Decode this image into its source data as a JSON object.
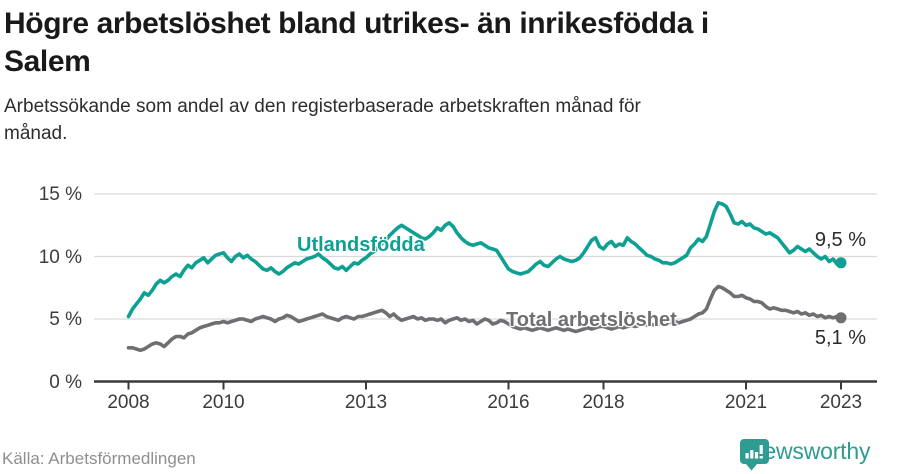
{
  "header": {
    "title": "Högre arbetslöshet bland utrikes- än inrikesfödda i Salem",
    "title_lines": [
      "Högre arbetslöshet bland utrikes- än inrikesfödda i",
      "Salem"
    ],
    "subtitle": "Arbetssökande som andel av den registerbaserade arbetskraften månad för månad.",
    "subtitle_lines": [
      "Arbetssökande som andel av den registerbaserade arbetskraften månad för",
      "månad."
    ]
  },
  "footer": {
    "source": "Källa: Arbetsförmedlingen",
    "logo_text": "Newsworthy",
    "logo_icon": "newsworthy-speech-bubble-bar-chart-icon"
  },
  "colors": {
    "foreign_born_line": "#0da093",
    "total_line": "#6e6e73",
    "gridline": "#d9d9d9",
    "axis": "#3a3a3a",
    "title_text": "#191919",
    "tick_text": "#3c3c3c",
    "source_text": "#8e8e95",
    "logo_teal": "#2e9c92"
  },
  "chart_data": {
    "type": "line",
    "frequency": "monthly",
    "x_start": "2008-01",
    "x_end": "2023-01",
    "ylim": [
      0,
      16
    ],
    "grid": "horizontal",
    "legend_position": "inline-labels",
    "y_ticks": [
      {
        "value": 15,
        "label": "15 %"
      },
      {
        "value": 10,
        "label": "10 %"
      },
      {
        "value": 5,
        "label": "5 %"
      },
      {
        "value": 0,
        "label": "0 %"
      }
    ],
    "x_ticks": [
      {
        "year": 2008,
        "label": "2008"
      },
      {
        "year": 2010,
        "label": "2010"
      },
      {
        "year": 2013,
        "label": "2013"
      },
      {
        "year": 2016,
        "label": "2016"
      },
      {
        "year": 2018,
        "label": "2018"
      },
      {
        "year": 2021,
        "label": "2021"
      },
      {
        "year": 2023,
        "label": "2023"
      }
    ],
    "series": [
      {
        "name": "Utlandsfödda",
        "color": "#0da093",
        "end_value": 9.5,
        "end_label": "9,5 %",
        "values": [
          5.2,
          5.8,
          6.2,
          6.6,
          7.1,
          6.9,
          7.3,
          7.8,
          8.1,
          7.9,
          8.1,
          8.4,
          8.6,
          8.4,
          8.9,
          9.3,
          9.1,
          9.5,
          9.7,
          9.9,
          9.5,
          9.8,
          10.1,
          10.2,
          10.3,
          9.9,
          9.6,
          10.0,
          10.2,
          9.9,
          10.1,
          9.8,
          9.6,
          9.3,
          9.0,
          8.9,
          9.1,
          8.8,
          8.6,
          8.8,
          9.1,
          9.3,
          9.5,
          9.4,
          9.6,
          9.8,
          9.9,
          10.0,
          10.2,
          9.9,
          9.7,
          9.4,
          9.1,
          9.0,
          9.2,
          8.9,
          9.2,
          9.5,
          9.4,
          9.7,
          9.9,
          10.2,
          10.4,
          10.7,
          11.0,
          11.3,
          11.7,
          12.0,
          12.3,
          12.5,
          12.3,
          12.1,
          11.9,
          11.7,
          11.5,
          11.4,
          11.6,
          11.9,
          12.3,
          12.1,
          12.5,
          12.7,
          12.4,
          11.9,
          11.5,
          11.2,
          11.0,
          10.9,
          11.0,
          11.1,
          10.9,
          10.7,
          10.6,
          10.5,
          10.0,
          9.5,
          9.0,
          8.8,
          8.7,
          8.6,
          8.7,
          8.8,
          9.1,
          9.4,
          9.6,
          9.3,
          9.2,
          9.5,
          9.8,
          10.0,
          9.8,
          9.7,
          9.6,
          9.7,
          9.9,
          10.3,
          10.8,
          11.3,
          11.5,
          10.8,
          10.6,
          11.0,
          11.2,
          10.8,
          11.0,
          10.9,
          11.5,
          11.2,
          11.0,
          10.7,
          10.4,
          10.1,
          10.0,
          9.8,
          9.7,
          9.5,
          9.5,
          9.4,
          9.5,
          9.7,
          9.9,
          10.1,
          10.7,
          11.0,
          11.4,
          11.2,
          11.6,
          12.6,
          13.6,
          14.3,
          14.2,
          14.0,
          13.4,
          12.7,
          12.6,
          12.8,
          12.5,
          12.6,
          12.3,
          12.2,
          12.0,
          11.8,
          11.9,
          11.7,
          11.5,
          11.1,
          10.7,
          10.3,
          10.5,
          10.8,
          10.6,
          10.4,
          10.6,
          10.3,
          10.0,
          9.8,
          10.0,
          9.6,
          9.8,
          9.4,
          9.5
        ]
      },
      {
        "name": "Total arbetslöshet",
        "color": "#6e6e73",
        "end_value": 5.1,
        "end_label": "5,1 %",
        "values": [
          2.7,
          2.7,
          2.6,
          2.5,
          2.6,
          2.8,
          3.0,
          3.1,
          3.0,
          2.8,
          3.1,
          3.4,
          3.6,
          3.6,
          3.5,
          3.8,
          3.9,
          4.1,
          4.3,
          4.4,
          4.5,
          4.6,
          4.7,
          4.7,
          4.8,
          4.7,
          4.8,
          4.9,
          5.0,
          5.0,
          4.9,
          4.8,
          5.0,
          5.1,
          5.2,
          5.1,
          5.0,
          4.8,
          5.0,
          5.1,
          5.3,
          5.2,
          5.0,
          4.8,
          4.9,
          5.0,
          5.1,
          5.2,
          5.3,
          5.4,
          5.2,
          5.1,
          5.0,
          4.9,
          5.1,
          5.2,
          5.1,
          5.0,
          5.2,
          5.2,
          5.3,
          5.4,
          5.5,
          5.6,
          5.7,
          5.5,
          5.2,
          5.4,
          5.1,
          4.9,
          5.0,
          5.1,
          5.2,
          5.0,
          5.1,
          4.9,
          5.0,
          5.0,
          4.9,
          5.0,
          4.7,
          4.9,
          5.0,
          5.1,
          4.9,
          5.0,
          4.8,
          4.9,
          4.6,
          4.8,
          5.0,
          4.9,
          4.6,
          4.7,
          4.9,
          4.8,
          4.6,
          4.4,
          4.3,
          4.2,
          4.3,
          4.2,
          4.1,
          4.2,
          4.3,
          4.2,
          4.1,
          4.2,
          4.3,
          4.2,
          4.1,
          4.2,
          4.1,
          4.0,
          4.1,
          4.2,
          4.3,
          4.2,
          4.3,
          4.4,
          4.4,
          4.3,
          4.2,
          4.3,
          4.4,
          4.3,
          4.4,
          4.5,
          4.4,
          4.5,
          4.6,
          4.5,
          4.6,
          4.5,
          4.6,
          4.7,
          4.6,
          4.7,
          4.8,
          4.7,
          4.8,
          4.9,
          5.0,
          5.2,
          5.4,
          5.5,
          5.8,
          6.6,
          7.3,
          7.6,
          7.5,
          7.3,
          7.1,
          6.8,
          6.8,
          6.9,
          6.7,
          6.6,
          6.4,
          6.4,
          6.3,
          6.0,
          5.8,
          5.9,
          5.8,
          5.7,
          5.7,
          5.6,
          5.5,
          5.6,
          5.4,
          5.5,
          5.3,
          5.4,
          5.2,
          5.3,
          5.1,
          5.2,
          5.1,
          5.2,
          5.1
        ]
      }
    ]
  }
}
